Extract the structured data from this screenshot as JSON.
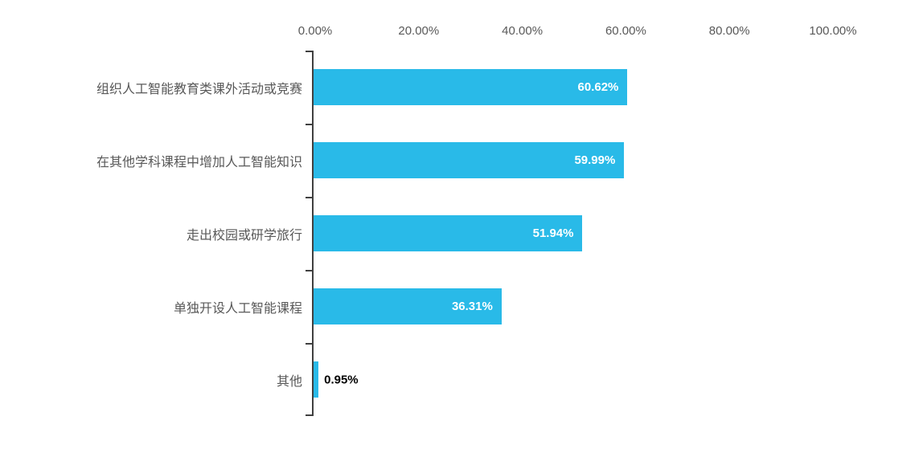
{
  "chart_data": {
    "type": "bar",
    "orientation": "horizontal",
    "title": "",
    "categories": [
      "组织人工智能教育类课外活动或竞赛",
      "在其他学科课程中增加人工智能知识",
      "走出校园或研学旅行",
      "单独开设人工智能课程",
      "其他"
    ],
    "values": [
      60.62,
      59.99,
      51.94,
      36.31,
      0.95
    ],
    "value_labels": [
      "60.62%",
      "59.99%",
      "51.94%",
      "36.31%",
      "0.95%"
    ],
    "x_ticks": [
      "0.00%",
      "20.00%",
      "40.00%",
      "60.00%",
      "80.00%",
      "100.00%"
    ],
    "xlim": [
      0,
      100
    ],
    "x_tick_position": "top",
    "grid": false,
    "legend": "none",
    "bar_color": "#29BAE8",
    "axis_color": "#404040",
    "tick_label_color": "#595959",
    "category_label_color": "#595959",
    "value_label_color_inside": "#FFFFFF",
    "value_label_color_outside": "#000000",
    "background_color": "#FFFFFF"
  }
}
